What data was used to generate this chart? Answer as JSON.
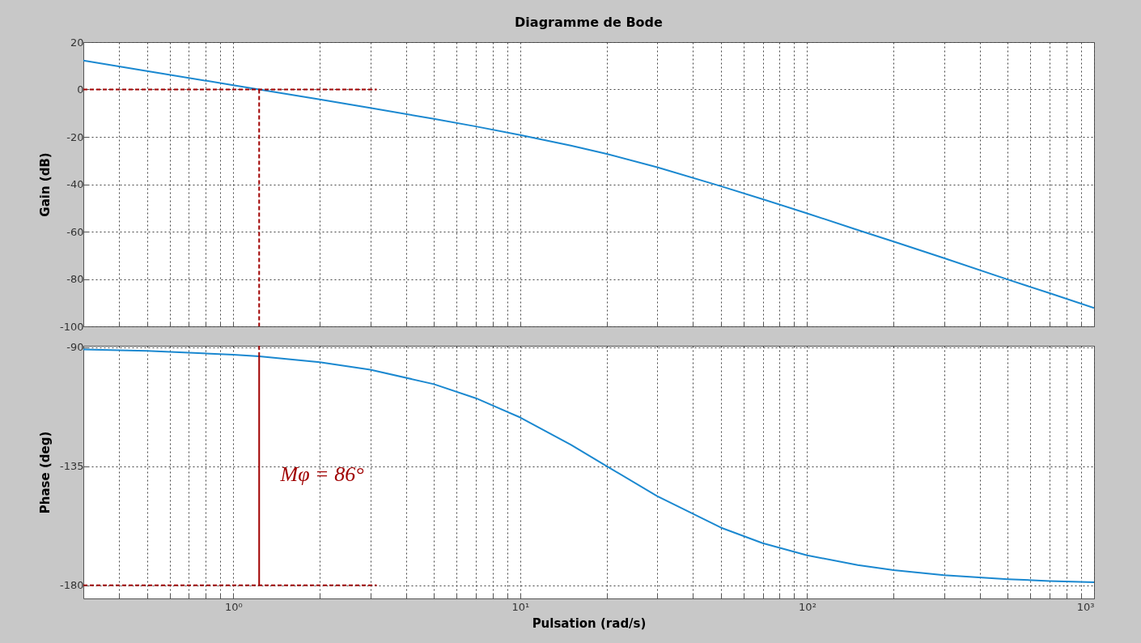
{
  "chart_data": [
    {
      "type": "line",
      "title": "Diagramme de Bode",
      "ylabel": "Gain (dB)",
      "log": "x",
      "grid": true,
      "tick_labels": "y",
      "xlim": [
        0.3,
        1000
      ],
      "ylim": [
        -100,
        20
      ],
      "yticks": [
        -100,
        -80,
        -60,
        -40,
        -20,
        0,
        20
      ],
      "xticks": [
        {
          "value": 0.4,
          "label": null
        },
        {
          "value": 0.5,
          "label": null
        },
        {
          "value": 0.6,
          "label": null
        },
        {
          "value": 0.7,
          "label": null
        },
        {
          "value": 0.8,
          "label": null
        },
        {
          "value": 0.9,
          "label": null
        },
        {
          "value": 1,
          "label": null
        },
        {
          "value": 2,
          "label": null
        },
        {
          "value": 3,
          "label": null
        },
        {
          "value": 4,
          "label": null
        },
        {
          "value": 5,
          "label": null
        },
        {
          "value": 6,
          "label": null
        },
        {
          "value": 7,
          "label": null
        },
        {
          "value": 8,
          "label": null
        },
        {
          "value": 9,
          "label": null
        },
        {
          "value": 10,
          "label": null
        },
        {
          "value": 20,
          "label": null
        },
        {
          "value": 30,
          "label": null
        },
        {
          "value": 40,
          "label": null
        },
        {
          "value": 50,
          "label": null
        },
        {
          "value": 60,
          "label": null
        },
        {
          "value": 70,
          "label": null
        },
        {
          "value": 80,
          "label": null
        },
        {
          "value": 90,
          "label": null
        },
        {
          "value": 100,
          "label": null
        },
        {
          "value": 200,
          "label": null
        },
        {
          "value": 300,
          "label": null
        },
        {
          "value": 400,
          "label": null
        },
        {
          "value": 500,
          "label": null
        },
        {
          "value": 600,
          "label": null
        },
        {
          "value": 700,
          "label": null
        },
        {
          "value": 800,
          "label": null
        },
        {
          "value": 900,
          "label": null
        },
        {
          "value": 1000,
          "label": null
        }
      ],
      "x": [
        0.3,
        0.5,
        1,
        1.23,
        2,
        3,
        5,
        7,
        10,
        15,
        20,
        30,
        50,
        70,
        100,
        150,
        200,
        300,
        500,
        700,
        1000
      ],
      "series": [
        {
          "color": "#1a88d0",
          "values": [
            12.2,
            7.8,
            1.8,
            0,
            -4.2,
            -7.8,
            -12.4,
            -15.6,
            -19.2,
            -23.7,
            -27.2,
            -32.8,
            -40.8,
            -46.3,
            -52.3,
            -59.3,
            -64.2,
            -71.2,
            -80.2,
            -86,
            -92.2
          ]
        },
        {
          "color": "#a00000",
          "line_style": "dashed",
          "x": [
            0.3,
            3.16
          ],
          "values": [
            0,
            0
          ]
        },
        {
          "color": "#a00000",
          "line_style": "dashed",
          "x": [
            1.23,
            1.23
          ],
          "values": [
            0,
            -100
          ]
        }
      ]
    },
    {
      "type": "line",
      "xlabel": "Pulsation  (rad/s)",
      "ylabel": "Phase (deg)",
      "log": "x",
      "grid": true,
      "xlim": [
        0.3,
        1000
      ],
      "ylim": [
        -185,
        -89.5
      ],
      "yticks": [
        -180,
        -135,
        -90
      ],
      "xticks": [
        {
          "value": 0.4,
          "label": null
        },
        {
          "value": 0.5,
          "label": null
        },
        {
          "value": 0.6,
          "label": null
        },
        {
          "value": 0.7,
          "label": null
        },
        {
          "value": 0.8,
          "label": null
        },
        {
          "value": 0.9,
          "label": null
        },
        {
          "value": 1,
          "label": "10⁰"
        },
        {
          "value": 2,
          "label": null
        },
        {
          "value": 3,
          "label": null
        },
        {
          "value": 4,
          "label": null
        },
        {
          "value": 5,
          "label": null
        },
        {
          "value": 6,
          "label": null
        },
        {
          "value": 7,
          "label": null
        },
        {
          "value": 8,
          "label": null
        },
        {
          "value": 9,
          "label": null
        },
        {
          "value": 10,
          "label": "10¹"
        },
        {
          "value": 20,
          "label": null
        },
        {
          "value": 30,
          "label": null
        },
        {
          "value": 40,
          "label": null
        },
        {
          "value": 50,
          "label": null
        },
        {
          "value": 60,
          "label": null
        },
        {
          "value": 70,
          "label": null
        },
        {
          "value": 80,
          "label": null
        },
        {
          "value": 90,
          "label": null
        },
        {
          "value": 100,
          "label": "10²"
        },
        {
          "value": 200,
          "label": null
        },
        {
          "value": 300,
          "label": null
        },
        {
          "value": 400,
          "label": null
        },
        {
          "value": 500,
          "label": null
        },
        {
          "value": 600,
          "label": null
        },
        {
          "value": 700,
          "label": null
        },
        {
          "value": 800,
          "label": null
        },
        {
          "value": 900,
          "label": null
        },
        {
          "value": 1000,
          "label": "10³"
        }
      ],
      "x": [
        0.3,
        0.5,
        1,
        1.23,
        2,
        3,
        5,
        7,
        10,
        15,
        20,
        30,
        50,
        70,
        100,
        150,
        200,
        300,
        500,
        700,
        1000
      ],
      "series": [
        {
          "color": "#1a88d0",
          "values": [
            -90.9,
            -91.4,
            -92.9,
            -93.5,
            -95.7,
            -98.5,
            -104,
            -109.3,
            -116.6,
            -126.9,
            -135,
            -146.3,
            -158.2,
            -164.1,
            -168.7,
            -172.4,
            -174.3,
            -176.2,
            -177.7,
            -178.4,
            -178.9
          ]
        },
        {
          "color": "#a00000",
          "line_style": "dashed",
          "x": [
            0.3,
            3.16
          ],
          "values": [
            -180,
            -180
          ]
        },
        {
          "color": "#a00000",
          "line_style": "dashed",
          "x": [
            1.23,
            1.23
          ],
          "values": [
            -89.5,
            -93.5
          ]
        },
        {
          "color": "#a00000",
          "line_style": "solid",
          "x": [
            1.23,
            1.23
          ],
          "values": [
            -180,
            -93.5
          ]
        }
      ],
      "annotations": [
        "Mφ = 86°"
      ]
    }
  ]
}
